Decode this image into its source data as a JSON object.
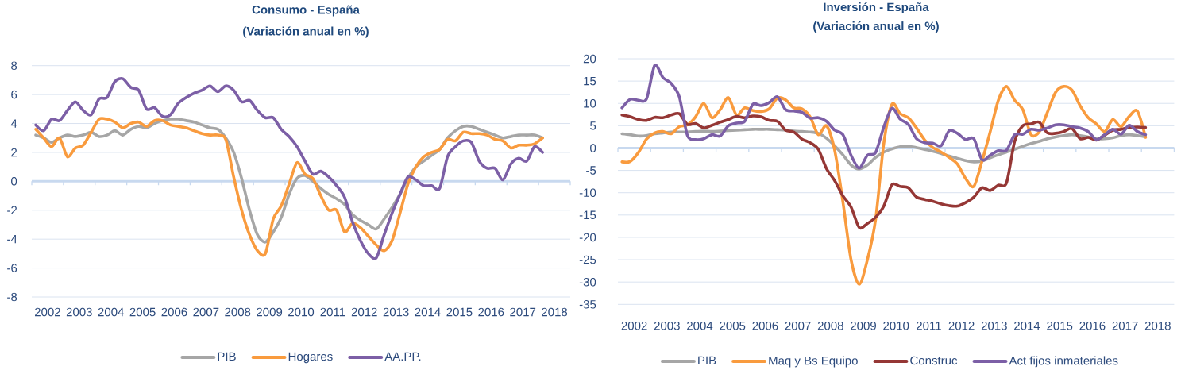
{
  "chart_data": [
    {
      "type": "line",
      "title": "Consumo - España",
      "subtitle": "(Variación anual en %)",
      "x": [
        2002.125,
        2002.375,
        2002.625,
        2002.875,
        2003.125,
        2003.375,
        2003.625,
        2003.875,
        2004.125,
        2004.375,
        2004.625,
        2004.875,
        2005.125,
        2005.375,
        2005.625,
        2005.875,
        2006.125,
        2006.375,
        2006.625,
        2006.875,
        2007.125,
        2007.375,
        2007.625,
        2007.875,
        2008.125,
        2008.375,
        2008.625,
        2008.875,
        2009.125,
        2009.375,
        2009.625,
        2009.875,
        2010.125,
        2010.375,
        2010.625,
        2010.875,
        2011.125,
        2011.375,
        2011.625,
        2011.875,
        2012.125,
        2012.375,
        2012.625,
        2012.875,
        2013.125,
        2013.375,
        2013.625,
        2013.875,
        2014.125,
        2014.375,
        2014.625,
        2014.875,
        2015.125,
        2015.375,
        2015.625,
        2015.875,
        2016.125,
        2016.375,
        2016.625,
        2016.875,
        2017.125,
        2017.375,
        2017.625,
        2017.875,
        2018.125
      ],
      "xlim": [
        2002,
        2019
      ],
      "xticks": [
        {
          "value": 2002,
          "label": null
        },
        {
          "value": 2002.5,
          "label": "2002"
        },
        {
          "value": 2003,
          "label": null
        },
        {
          "value": 2003.5,
          "label": "2003"
        },
        {
          "value": 2004,
          "label": null
        },
        {
          "value": 2004.5,
          "label": "2004"
        },
        {
          "value": 2005,
          "label": null
        },
        {
          "value": 2005.5,
          "label": "2005"
        },
        {
          "value": 2006,
          "label": null
        },
        {
          "value": 2006.5,
          "label": "2006"
        },
        {
          "value": 2007,
          "label": null
        },
        {
          "value": 2007.5,
          "label": "2007"
        },
        {
          "value": 2008,
          "label": null
        },
        {
          "value": 2008.5,
          "label": "2008"
        },
        {
          "value": 2009,
          "label": null
        },
        {
          "value": 2009.5,
          "label": "2009"
        },
        {
          "value": 2010,
          "label": null
        },
        {
          "value": 2010.5,
          "label": "2010"
        },
        {
          "value": 2011,
          "label": null
        },
        {
          "value": 2011.5,
          "label": "2011"
        },
        {
          "value": 2012,
          "label": null
        },
        {
          "value": 2012.5,
          "label": "2012"
        },
        {
          "value": 2013,
          "label": null
        },
        {
          "value": 2013.5,
          "label": "2013"
        },
        {
          "value": 2014,
          "label": null
        },
        {
          "value": 2014.5,
          "label": "2014"
        },
        {
          "value": 2015,
          "label": null
        },
        {
          "value": 2015.5,
          "label": "2015"
        },
        {
          "value": 2016,
          "label": null
        },
        {
          "value": 2016.5,
          "label": "2016"
        },
        {
          "value": 2017,
          "label": null
        },
        {
          "value": 2017.5,
          "label": "2017"
        },
        {
          "value": 2018,
          "label": null
        },
        {
          "value": 2018.5,
          "label": "2018"
        },
        {
          "value": 2019,
          "label": null
        }
      ],
      "ylim": [
        -8,
        8
      ],
      "yticks": [
        -8,
        -6,
        -4,
        -2,
        0,
        2,
        4,
        6,
        8
      ],
      "grid": "y",
      "legend": "bottom",
      "series": [
        {
          "name": "PIB",
          "color": "#a6a6a6",
          "values": [
            3.2,
            3.0,
            2.7,
            3.0,
            3.2,
            3.1,
            3.2,
            3.4,
            3.1,
            3.2,
            3.5,
            3.2,
            3.6,
            3.8,
            3.7,
            4.0,
            4.2,
            4.3,
            4.3,
            4.2,
            4.1,
            3.9,
            3.7,
            3.6,
            3.0,
            2.0,
            0.2,
            -2.0,
            -3.7,
            -4.2,
            -3.5,
            -2.5,
            -0.9,
            0.2,
            0.4,
            0.0,
            -0.5,
            -0.9,
            -1.2,
            -1.6,
            -2.3,
            -2.7,
            -3.0,
            -3.3,
            -2.6,
            -1.8,
            -0.9,
            0.2,
            1.0,
            1.4,
            1.8,
            2.2,
            3.0,
            3.5,
            3.8,
            3.8,
            3.6,
            3.4,
            3.2,
            3.0,
            3.1,
            3.2,
            3.2,
            3.2,
            3.0
          ]
        },
        {
          "name": "Hogares",
          "color": "#f99b3e",
          "values": [
            3.6,
            3.0,
            2.4,
            3.0,
            1.7,
            2.3,
            2.5,
            3.4,
            4.3,
            4.3,
            4.1,
            3.7,
            4.0,
            4.1,
            3.8,
            4.2,
            4.2,
            3.9,
            3.8,
            3.7,
            3.5,
            3.3,
            3.2,
            3.2,
            2.9,
            0.3,
            -2.0,
            -3.7,
            -4.8,
            -5.0,
            -2.6,
            -1.7,
            -0.2,
            1.3,
            0.5,
            0.2,
            -1.0,
            -2.0,
            -2.0,
            -3.5,
            -2.9,
            -3.2,
            -3.8,
            -4.4,
            -4.8,
            -4.1,
            -2.2,
            -0.2,
            1.0,
            1.7,
            2.0,
            2.2,
            2.9,
            2.8,
            3.4,
            3.3,
            3.3,
            3.2,
            2.9,
            2.8,
            2.3,
            2.5,
            2.5,
            2.6,
            3.0
          ]
        },
        {
          "name": "AA.PP.",
          "color": "#7c5fa6",
          "values": [
            3.9,
            3.5,
            4.3,
            4.2,
            4.9,
            5.5,
            4.9,
            4.6,
            5.7,
            5.8,
            6.9,
            7.1,
            6.5,
            6.3,
            5.0,
            5.1,
            4.5,
            4.6,
            5.4,
            5.8,
            6.1,
            6.3,
            6.6,
            6.2,
            6.6,
            6.3,
            5.5,
            5.6,
            4.9,
            4.4,
            4.4,
            3.6,
            3.1,
            2.4,
            1.4,
            0.5,
            0.7,
            0.3,
            -0.3,
            -1.1,
            -2.8,
            -4.1,
            -5.0,
            -5.3,
            -3.7,
            -2.2,
            -0.9,
            0.3,
            0.1,
            -0.3,
            -0.3,
            -0.5,
            1.7,
            2.4,
            2.8,
            2.7,
            1.4,
            0.9,
            0.9,
            0.1,
            1.2,
            1.6,
            1.4,
            2.4,
            2.0
          ]
        }
      ]
    },
    {
      "type": "line",
      "title": "Inversión - España",
      "subtitle": "(Variación anual en %)",
      "x": [
        2002.125,
        2002.375,
        2002.625,
        2002.875,
        2003.125,
        2003.375,
        2003.625,
        2003.875,
        2004.125,
        2004.375,
        2004.625,
        2004.875,
        2005.125,
        2005.375,
        2005.625,
        2005.875,
        2006.125,
        2006.375,
        2006.625,
        2006.875,
        2007.125,
        2007.375,
        2007.625,
        2007.875,
        2008.125,
        2008.375,
        2008.625,
        2008.875,
        2009.125,
        2009.375,
        2009.625,
        2009.875,
        2010.125,
        2010.375,
        2010.625,
        2010.875,
        2011.125,
        2011.375,
        2011.625,
        2011.875,
        2012.125,
        2012.375,
        2012.625,
        2012.875,
        2013.125,
        2013.375,
        2013.625,
        2013.875,
        2014.125,
        2014.375,
        2014.625,
        2014.875,
        2015.125,
        2015.375,
        2015.625,
        2015.875,
        2016.125,
        2016.375,
        2016.625,
        2016.875,
        2017.125,
        2017.375,
        2017.625,
        2017.875,
        2018.125
      ],
      "xlim": [
        2002,
        2019
      ],
      "xticks": [
        {
          "value": 2002,
          "label": null
        },
        {
          "value": 2002.5,
          "label": "2002"
        },
        {
          "value": 2003,
          "label": null
        },
        {
          "value": 2003.5,
          "label": "2003"
        },
        {
          "value": 2004,
          "label": null
        },
        {
          "value": 2004.5,
          "label": "2004"
        },
        {
          "value": 2005,
          "label": null
        },
        {
          "value": 2005.5,
          "label": "2005"
        },
        {
          "value": 2006,
          "label": null
        },
        {
          "value": 2006.5,
          "label": "2006"
        },
        {
          "value": 2007,
          "label": null
        },
        {
          "value": 2007.5,
          "label": "2007"
        },
        {
          "value": 2008,
          "label": null
        },
        {
          "value": 2008.5,
          "label": "2008"
        },
        {
          "value": 2009,
          "label": null
        },
        {
          "value": 2009.5,
          "label": "2009"
        },
        {
          "value": 2010,
          "label": null
        },
        {
          "value": 2010.5,
          "label": "2010"
        },
        {
          "value": 2011,
          "label": null
        },
        {
          "value": 2011.5,
          "label": "2011"
        },
        {
          "value": 2012,
          "label": null
        },
        {
          "value": 2012.5,
          "label": "2012"
        },
        {
          "value": 2013,
          "label": null
        },
        {
          "value": 2013.5,
          "label": "2013"
        },
        {
          "value": 2014,
          "label": null
        },
        {
          "value": 2014.5,
          "label": "2014"
        },
        {
          "value": 2015,
          "label": null
        },
        {
          "value": 2015.5,
          "label": "2015"
        },
        {
          "value": 2016,
          "label": null
        },
        {
          "value": 2016.5,
          "label": "2016"
        },
        {
          "value": 2017,
          "label": null
        },
        {
          "value": 2017.5,
          "label": "2017"
        },
        {
          "value": 2018,
          "label": null
        },
        {
          "value": 2018.5,
          "label": "2018"
        },
        {
          "value": 2019,
          "label": null
        }
      ],
      "ylim": [
        -35,
        20
      ],
      "yticks": [
        -35,
        -30,
        -25,
        -20,
        -15,
        -10,
        -5,
        0,
        5,
        10,
        15,
        20
      ],
      "grid": "y",
      "legend": "bottom",
      "series": [
        {
          "name": "PIB",
          "color": "#a6a6a6",
          "values": [
            3.2,
            3.0,
            2.7,
            2.8,
            3.2,
            3.4,
            3.6,
            3.6,
            3.6,
            3.7,
            3.8,
            3.7,
            3.8,
            3.9,
            4.0,
            4.1,
            4.2,
            4.2,
            4.2,
            4.1,
            4.0,
            3.8,
            3.7,
            3.6,
            3.3,
            2.2,
            0.5,
            -1.5,
            -3.8,
            -4.7,
            -3.8,
            -2.1,
            -0.9,
            -0.2,
            0.3,
            0.4,
            0.1,
            -0.3,
            -0.7,
            -1.2,
            -1.8,
            -2.3,
            -2.8,
            -3.1,
            -2.9,
            -2.2,
            -1.5,
            -0.9,
            -0.3,
            0.4,
            1.0,
            1.5,
            2.1,
            2.5,
            2.8,
            3.0,
            2.8,
            2.5,
            2.1,
            2.1,
            2.3,
            2.8,
            3.0,
            2.8,
            2.5
          ]
        },
        {
          "name": "Maq y Bs Equipo",
          "color": "#f99b3e",
          "values": [
            -3.1,
            -3.0,
            -1.0,
            2.0,
            3.4,
            3.7,
            3.2,
            4.8,
            5.2,
            7.0,
            10.0,
            6.8,
            8.6,
            11.3,
            7.4,
            9.0,
            8.4,
            8.2,
            8.8,
            11.2,
            10.8,
            9.0,
            8.8,
            7.0,
            3.0,
            5.0,
            -0.5,
            -12.0,
            -25.0,
            -30.5,
            -25.0,
            -16.0,
            1.0,
            9.8,
            7.7,
            6.8,
            4.5,
            1.8,
            0.1,
            -0.9,
            -2.1,
            -3.6,
            -6.8,
            -8.6,
            -3.0,
            3.6,
            10.7,
            13.8,
            10.7,
            8.6,
            3.0,
            3.6,
            8.0,
            12.5,
            13.8,
            13.0,
            9.5,
            6.8,
            5.4,
            3.7,
            6.4,
            4.8,
            7.1,
            8.3,
            2.4
          ]
        },
        {
          "name": "Construc",
          "color": "#953735",
          "values": [
            7.4,
            7.0,
            6.4,
            6.2,
            6.9,
            6.8,
            7.4,
            7.7,
            5.3,
            5.5,
            4.5,
            5.1,
            5.8,
            6.4,
            7.1,
            6.8,
            7.2,
            7.0,
            6.2,
            6.0,
            4.0,
            3.6,
            2.0,
            1.2,
            -0.3,
            -4.6,
            -7.3,
            -10.7,
            -13.2,
            -17.8,
            -16.9,
            -15.5,
            -13.0,
            -8.2,
            -8.6,
            -8.9,
            -11.0,
            -11.5,
            -11.9,
            -12.5,
            -12.9,
            -13.0,
            -12.2,
            -11.0,
            -8.9,
            -9.5,
            -8.3,
            -7.8,
            1.5,
            5.0,
            5.4,
            5.8,
            3.4,
            3.3,
            3.7,
            4.4,
            2.1,
            2.4,
            1.8,
            2.9,
            4.0,
            4.2,
            4.6,
            4.7,
            4.6
          ]
        },
        {
          "name": "Act fijos inmateriales",
          "color": "#7c5fa6",
          "values": [
            9.0,
            10.9,
            10.7,
            11.0,
            18.5,
            15.8,
            14.5,
            11.5,
            2.8,
            1.9,
            2.1,
            3.0,
            2.7,
            5.0,
            5.6,
            6.0,
            9.8,
            9.5,
            10.2,
            11.5,
            8.6,
            8.3,
            8.0,
            6.7,
            6.8,
            6.0,
            4.0,
            3.0,
            -1.6,
            -4.5,
            -1.6,
            -1.0,
            4.7,
            8.9,
            6.5,
            5.3,
            2.1,
            1.2,
            1.1,
            0.5,
            3.9,
            3.3,
            1.9,
            2.1,
            -2.6,
            -1.6,
            -0.6,
            -0.5,
            3.0,
            3.1,
            4.2,
            4.0,
            4.5,
            5.2,
            5.2,
            4.8,
            4.5,
            3.7,
            1.9,
            3.0,
            4.2,
            3.1,
            5.1,
            3.7,
            3.0
          ]
        }
      ]
    }
  ]
}
